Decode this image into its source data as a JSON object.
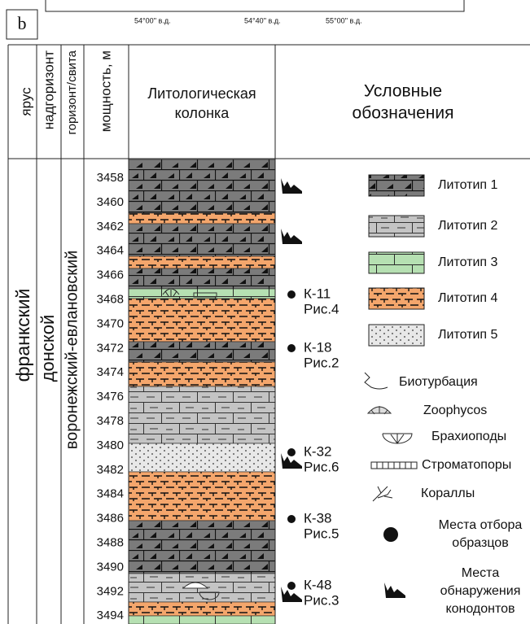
{
  "figure_label": "b",
  "map_axis": {
    "labels": [
      "54°00'' в.д.",
      "54°40'' в.д.",
      "55°00'' в.д."
    ]
  },
  "header": {
    "stage": "ярус",
    "superhorizon": "надгоризонт",
    "horizon": "горизонт/свита",
    "thickness": "мощность, м",
    "column": [
      "Литологическая",
      "колонка"
    ],
    "legend": [
      "Условные",
      "обозначения"
    ]
  },
  "body": {
    "stage": "франкский",
    "superhorizon": "донской",
    "horizon": "воронежский-евлановский",
    "depths": [
      3458,
      3460,
      3462,
      3464,
      3466,
      3468,
      3470,
      3472,
      3474,
      3476,
      3478,
      3480,
      3482,
      3484,
      3486,
      3488,
      3490,
      3492,
      3494
    ]
  },
  "samples": [
    {
      "id": "К-11",
      "figure": "Рис.4"
    },
    {
      "id": "К-18",
      "figure": "Рис.2"
    },
    {
      "id": "К-32",
      "figure": "Рис.6"
    },
    {
      "id": "К-38",
      "figure": "Рис.5"
    },
    {
      "id": "К-48",
      "figure": "Рис.3"
    }
  ],
  "legend": {
    "lithotypes": [
      "Литотип 1",
      "Литотип 2",
      "Литотип 3",
      "Литотип 4",
      "Литотип 5"
    ],
    "symbols": [
      [
        "Биотурбация"
      ],
      [
        "Zoophycos"
      ],
      [
        "Брахиоподы"
      ],
      [
        "Строматопоры"
      ],
      [
        "Кораллы"
      ],
      [
        "Места отбора",
        "образцов"
      ],
      [
        "Места",
        "обнаружения",
        "конодонтов"
      ]
    ]
  }
}
